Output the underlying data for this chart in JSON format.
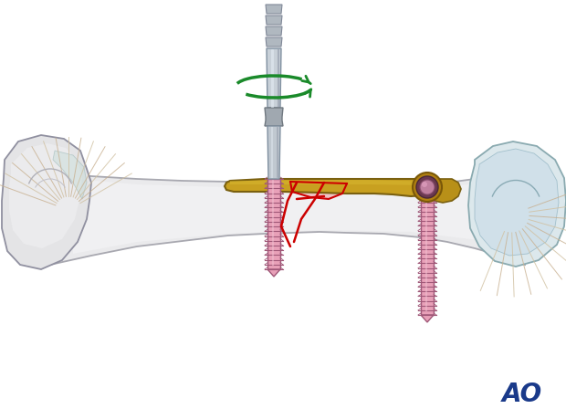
{
  "background_color": "#ffffff",
  "bone_color": "#e8e8ea",
  "bone_outline_color": "#a0a0a8",
  "plate_color": "#c8a020",
  "plate_outline_color": "#7a6010",
  "screw_color": "#e8a0b8",
  "screw_outline_color": "#a05878",
  "screwdriver_light": "#d0d4d8",
  "screwdriver_dark": "#8090a0",
  "screwdriver_mid": "#a0b0bc",
  "fracture_color": "#cc0000",
  "fracture_fill": "#f0b0b0",
  "arrow_color": "#1a8a2a",
  "ao_color": "#1a3a8a",
  "tendon_color_warm": "#c8b090",
  "tendon_color_cool": "#a0b8c0",
  "figsize": [
    6.2,
    4.59
  ],
  "dpi": 100
}
